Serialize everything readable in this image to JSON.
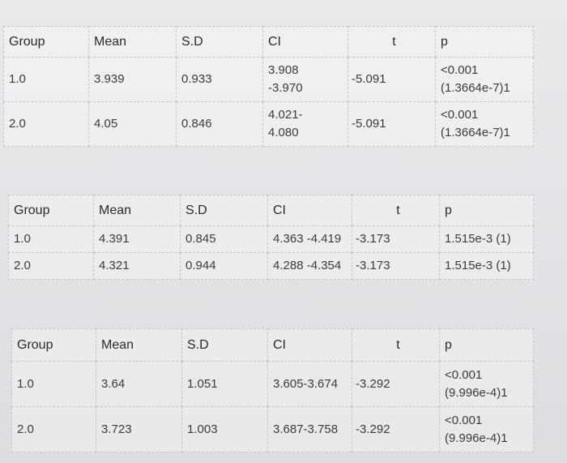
{
  "tables": [
    {
      "headers": [
        "Group",
        "Mean",
        "S.D",
        "CI",
        "t",
        "p"
      ],
      "rows": [
        {
          "group": "1.0",
          "mean": "3.939",
          "sd": "0.933",
          "ci_1": "3.908",
          "ci_2": "-3.970",
          "t": "-5.091",
          "p_1": "<0.001",
          "p_2": "(1.3664e-7)1"
        },
        {
          "group": "2.0",
          "mean": "4.05",
          "sd": "0.846",
          "ci_1": "4.021-",
          "ci_2": "4.080",
          "t": "-5.091",
          "p_1": "<0.001",
          "p_2": "(1.3664e-7)1"
        }
      ]
    },
    {
      "headers": [
        "Group",
        "Mean",
        "S.D",
        "CI",
        "t",
        "p"
      ],
      "rows": [
        {
          "group": "1.0",
          "mean": "4.391",
          "sd": "0.845",
          "ci": "4.363 -4.419",
          "t": "-3.173",
          "p": "1.515e-3 (1)"
        },
        {
          "group": "2.0",
          "mean": "4.321",
          "sd": "0.944",
          "ci": "4.288 -4.354",
          "t": "-3.173",
          "p": "1.515e-3 (1)"
        }
      ]
    },
    {
      "headers": [
        "Group",
        "Mean",
        "S.D",
        "CI",
        "t",
        "p"
      ],
      "rows": [
        {
          "group": "1.0",
          "mean": "3.64",
          "sd": "1.051",
          "ci": "3.605-3.674",
          "t": "-3.292",
          "p_1": "<0.001",
          "p_2": "(9.996e-4)1"
        },
        {
          "group": "2.0",
          "mean": "3.723",
          "sd": "1.003",
          "ci": "3.687-3.758",
          "t": "-3.292",
          "p_1": "<0.001",
          "p_2": "(9.996e-4)1"
        }
      ]
    }
  ]
}
